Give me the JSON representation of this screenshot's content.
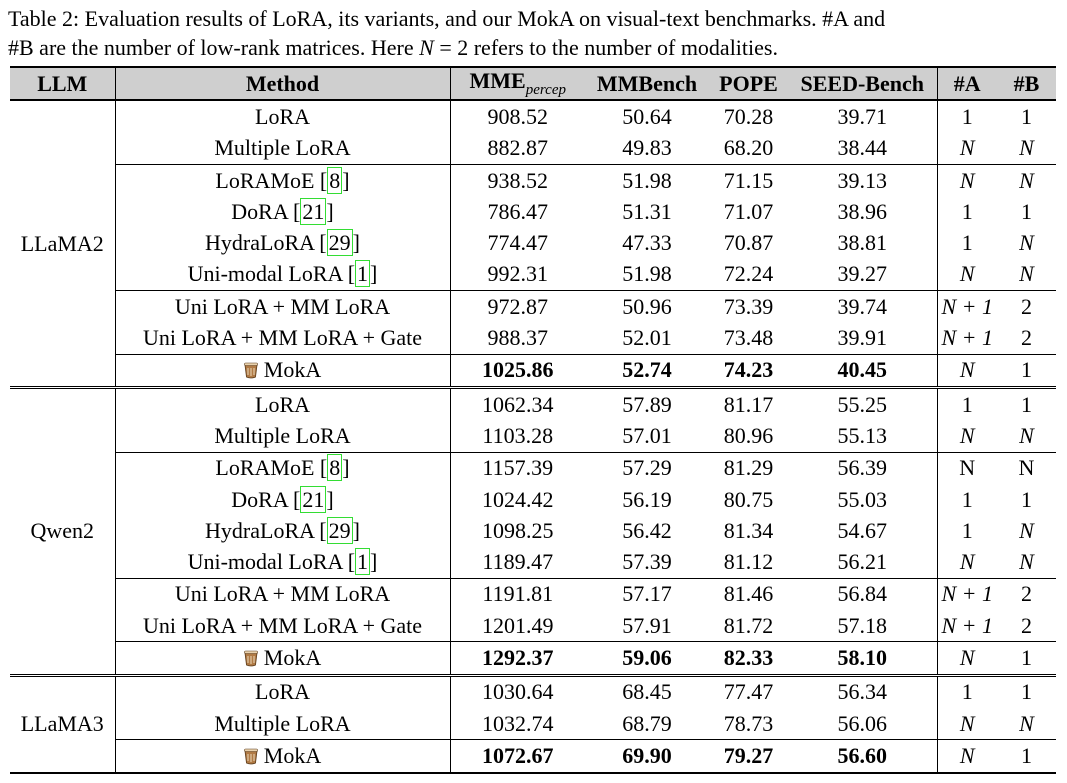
{
  "caption": {
    "line1": "Table 2: Evaluation results of LoRA, its variants, and our MokA on visual-text benchmarks. #A and",
    "line2_pre": "#B are the number of low-rank matrices. Here ",
    "line2_N": "N",
    "line2_eq": " = 2",
    "line2_post": " refers to the number of modalities."
  },
  "header": {
    "llm": "LLM",
    "method": "Method",
    "mme": "MME",
    "mme_sub": "percep",
    "mmbench": "MMBench",
    "pope": "POPE",
    "seed": "SEED-Bench",
    "a": "#A",
    "b": "#B"
  },
  "methods": {
    "lora": "LoRA",
    "multiple_lora": "Multiple LoRA",
    "loramoe": "LoRAMoE ",
    "loramoe_cite": "8",
    "dora": "DoRA ",
    "dora_cite": "21",
    "hydralora": "HydraLoRA ",
    "hydralora_cite": "29",
    "unimodal": "Uni-modal LoRA ",
    "unimodal_cite": "1",
    "uni_mm": "Uni LoRA + MM LoRA",
    "uni_mm_gate": "Uni LoRA + MM LoRA + Gate",
    "moka": "MokA"
  },
  "groups": {
    "llama2": {
      "label": "LLaMA2",
      "lora": [
        "908.52",
        "50.64",
        "70.28",
        "39.71",
        "1",
        "1"
      ],
      "multiple_lora": [
        "882.87",
        "49.83",
        "68.20",
        "38.44",
        "N",
        "N"
      ],
      "loramoe": [
        "938.52",
        "51.98",
        "71.15",
        "39.13",
        "N",
        "N"
      ],
      "dora": [
        "786.47",
        "51.31",
        "71.07",
        "38.96",
        "1",
        "1"
      ],
      "hydralora": [
        "774.47",
        "47.33",
        "70.87",
        "38.81",
        "1",
        "N"
      ],
      "unimodal": [
        "992.31",
        "51.98",
        "72.24",
        "39.27",
        "N",
        "N"
      ],
      "uni_mm": [
        "972.87",
        "50.96",
        "73.39",
        "39.74",
        "N + 1",
        "2"
      ],
      "uni_mm_gate": [
        "988.37",
        "52.01",
        "73.48",
        "39.91",
        "N + 1",
        "2"
      ],
      "moka": [
        "1025.86",
        "52.74",
        "74.23",
        "40.45",
        "N",
        "1"
      ]
    },
    "qwen2": {
      "label": "Qwen2",
      "lora": [
        "1062.34",
        "57.89",
        "81.17",
        "55.25",
        "1",
        "1"
      ],
      "multiple_lora": [
        "1103.28",
        "57.01",
        "80.96",
        "55.13",
        "N",
        "N"
      ],
      "loramoe": [
        "1157.39",
        "57.29",
        "81.29",
        "56.39",
        "N",
        "N"
      ],
      "dora": [
        "1024.42",
        "56.19",
        "80.75",
        "55.03",
        "1",
        "1"
      ],
      "hydralora": [
        "1098.25",
        "56.42",
        "81.34",
        "54.67",
        "1",
        "N"
      ],
      "unimodal": [
        "1189.47",
        "57.39",
        "81.12",
        "56.21",
        "N",
        "N"
      ],
      "uni_mm": [
        "1191.81",
        "57.17",
        "81.46",
        "56.84",
        "N + 1",
        "2"
      ],
      "uni_mm_gate": [
        "1201.49",
        "57.91",
        "81.72",
        "57.18",
        "N + 1",
        "2"
      ],
      "moka": [
        "1292.37",
        "59.06",
        "82.33",
        "58.10",
        "N",
        "1"
      ]
    },
    "llama3": {
      "label": "LLaMA3",
      "lora": [
        "1030.64",
        "68.45",
        "77.47",
        "56.34",
        "1",
        "1"
      ],
      "multiple_lora": [
        "1032.74",
        "68.79",
        "78.73",
        "56.06",
        "N",
        "N"
      ],
      "moka": [
        "1072.67",
        "69.90",
        "79.27",
        "56.60",
        "N",
        "1"
      ]
    }
  },
  "icons": {
    "moka": "coffee-cup-icon"
  },
  "colors": {
    "header_bg": "#cfcfcf",
    "cite_box": "#33dd33"
  }
}
